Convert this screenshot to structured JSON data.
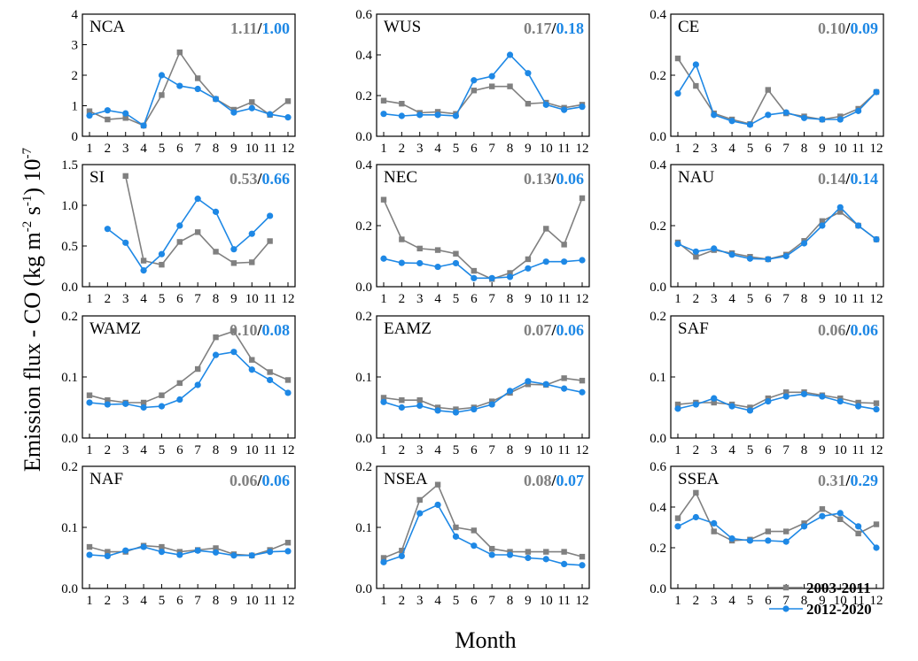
{
  "y_label": "Emission flux - CO (kg m",
  "y_label_sup1": "-2",
  "y_label_mid": " s",
  "y_label_sup2": "-1",
  "y_label_end": ") 10",
  "y_label_sup3": "-7",
  "x_label": "Month",
  "colors": {
    "series_2003": "#808080",
    "series_2012": "#1e88e5"
  },
  "legend": [
    "2003-2011",
    "2012-2020"
  ],
  "chart_data": [
    {
      "type": "line",
      "title": "NCA",
      "stat_2003": "1.11",
      "sep": "/",
      "stat_2012": "1.00",
      "ylim": [
        0,
        4
      ],
      "yticks": [
        "0",
        "1",
        "2",
        "3",
        "4"
      ],
      "ytick_values": [
        0,
        1,
        2,
        3,
        4
      ],
      "x": [
        "1",
        "2",
        "3",
        "4",
        "5",
        "6",
        "7",
        "8",
        "9",
        "10",
        "11",
        "12"
      ],
      "series": [
        {
          "name": "2003-2011",
          "values": [
            0.82,
            0.55,
            0.6,
            0.35,
            1.35,
            2.75,
            1.9,
            1.22,
            0.87,
            1.12,
            0.7,
            1.15
          ]
        },
        {
          "name": "2012-2020",
          "values": [
            0.68,
            0.85,
            0.75,
            0.35,
            2.0,
            1.65,
            1.55,
            1.22,
            0.78,
            0.92,
            0.72,
            0.62
          ]
        }
      ]
    },
    {
      "type": "line",
      "title": "WUS",
      "stat_2003": "0.17",
      "sep": "/",
      "stat_2012": "0.18",
      "ylim": [
        0,
        0.6
      ],
      "yticks": [
        "0.0",
        "0.2",
        "0.4",
        "0.6"
      ],
      "ytick_values": [
        0,
        0.2,
        0.4,
        0.6
      ],
      "x": [
        "1",
        "2",
        "3",
        "4",
        "5",
        "6",
        "7",
        "8",
        "9",
        "10",
        "11",
        "12"
      ],
      "series": [
        {
          "name": "2003-2011",
          "values": [
            0.175,
            0.16,
            0.115,
            0.12,
            0.11,
            0.225,
            0.245,
            0.245,
            0.16,
            0.165,
            0.14,
            0.155
          ]
        },
        {
          "name": "2012-2020",
          "values": [
            0.11,
            0.1,
            0.105,
            0.105,
            0.1,
            0.275,
            0.295,
            0.4,
            0.31,
            0.155,
            0.13,
            0.145
          ]
        }
      ]
    },
    {
      "type": "line",
      "title": "CE",
      "stat_2003": "0.10",
      "sep": "/",
      "stat_2012": "0.09",
      "ylim": [
        0,
        0.4
      ],
      "yticks": [
        "0.0",
        "0.2",
        "0.4"
      ],
      "ytick_values": [
        0,
        0.2,
        0.4
      ],
      "x": [
        "1",
        "2",
        "3",
        "4",
        "5",
        "6",
        "7",
        "8",
        "9",
        "10",
        "11",
        "12"
      ],
      "series": [
        {
          "name": "2003-2011",
          "values": [
            0.255,
            0.165,
            0.075,
            0.055,
            0.04,
            0.152,
            0.075,
            0.065,
            0.055,
            0.065,
            0.09,
            0.145
          ]
        },
        {
          "name": "2012-2020",
          "values": [
            0.14,
            0.235,
            0.07,
            0.05,
            0.038,
            0.07,
            0.078,
            0.06,
            0.055,
            0.055,
            0.083,
            0.145
          ]
        }
      ]
    },
    {
      "type": "line",
      "title": "SI",
      "stat_2003": "0.53",
      "sep": "/",
      "stat_2012": "0.66",
      "ylim": [
        0,
        1.5
      ],
      "yticks": [
        "0.0",
        "0.5",
        "1.0",
        "1.5"
      ],
      "ytick_values": [
        0,
        0.5,
        1.0,
        1.5
      ],
      "x": [
        "1",
        "2",
        "3",
        "4",
        "5",
        "6",
        "7",
        "8",
        "9",
        "10",
        "11",
        "12"
      ],
      "series": [
        {
          "name": "2003-2011",
          "values": [
            null,
            null,
            1.36,
            0.32,
            0.27,
            0.55,
            0.67,
            0.43,
            0.29,
            0.3,
            0.56,
            null
          ]
        },
        {
          "name": "2012-2020",
          "values": [
            null,
            0.71,
            0.54,
            0.2,
            0.4,
            0.75,
            1.08,
            0.92,
            0.46,
            0.65,
            0.87,
            null
          ]
        }
      ]
    },
    {
      "type": "line",
      "title": "NEC",
      "stat_2003": "0.13",
      "sep": "/",
      "stat_2012": "0.06",
      "ylim": [
        0,
        0.4
      ],
      "yticks": [
        "0.0",
        "0.2",
        "0.4"
      ],
      "ytick_values": [
        0,
        0.2,
        0.4
      ],
      "x": [
        "1",
        "2",
        "3",
        "4",
        "5",
        "6",
        "7",
        "8",
        "9",
        "10",
        "11",
        "12"
      ],
      "series": [
        {
          "name": "2003-2011",
          "values": [
            0.285,
            0.155,
            0.125,
            0.12,
            0.108,
            0.052,
            0.025,
            0.045,
            0.09,
            0.19,
            0.138,
            0.29
          ]
        },
        {
          "name": "2012-2020",
          "values": [
            0.092,
            0.078,
            0.077,
            0.065,
            0.077,
            0.028,
            0.028,
            0.032,
            0.06,
            0.082,
            0.082,
            0.087
          ]
        }
      ]
    },
    {
      "type": "line",
      "title": "NAU",
      "stat_2003": "0.14",
      "sep": "/",
      "stat_2012": "0.14",
      "ylim": [
        0,
        0.4
      ],
      "yticks": [
        "0.0",
        "0.2",
        "0.4"
      ],
      "ytick_values": [
        0,
        0.2,
        0.4
      ],
      "x": [
        "1",
        "2",
        "3",
        "4",
        "5",
        "6",
        "7",
        "8",
        "9",
        "10",
        "11",
        "12"
      ],
      "series": [
        {
          "name": "2003-2011",
          "values": [
            0.145,
            0.098,
            0.12,
            0.11,
            0.098,
            0.09,
            0.105,
            0.15,
            0.215,
            0.245,
            0.2,
            0.155
          ]
        },
        {
          "name": "2012-2020",
          "values": [
            0.14,
            0.115,
            0.125,
            0.105,
            0.092,
            0.09,
            0.1,
            0.142,
            0.2,
            0.26,
            0.2,
            0.155
          ]
        }
      ]
    },
    {
      "type": "line",
      "title": "WAMZ",
      "stat_2003": "0.10",
      "sep": "/",
      "stat_2012": "0.08",
      "ylim": [
        0,
        0.2
      ],
      "yticks": [
        "0.0",
        "0.1",
        "0.2"
      ],
      "ytick_values": [
        0,
        0.1,
        0.2
      ],
      "x": [
        "1",
        "2",
        "3",
        "4",
        "5",
        "6",
        "7",
        "8",
        "9",
        "10",
        "11",
        "12"
      ],
      "series": [
        {
          "name": "2003-2011",
          "values": [
            0.07,
            0.062,
            0.058,
            0.058,
            0.07,
            0.09,
            0.113,
            0.165,
            0.175,
            0.128,
            0.108,
            0.095
          ]
        },
        {
          "name": "2012-2020",
          "values": [
            0.058,
            0.055,
            0.056,
            0.05,
            0.052,
            0.063,
            0.087,
            0.136,
            0.141,
            0.112,
            0.095,
            0.074
          ]
        }
      ]
    },
    {
      "type": "line",
      "title": "EAMZ",
      "stat_2003": "0.07",
      "sep": "/",
      "stat_2012": "0.06",
      "ylim": [
        0,
        0.2
      ],
      "yticks": [
        "0.0",
        "0.1",
        "0.2"
      ],
      "ytick_values": [
        0,
        0.1,
        0.2
      ],
      "x": [
        "1",
        "2",
        "3",
        "4",
        "5",
        "6",
        "7",
        "8",
        "9",
        "10",
        "11",
        "12"
      ],
      "series": [
        {
          "name": "2003-2011",
          "values": [
            0.066,
            0.062,
            0.062,
            0.05,
            0.047,
            0.05,
            0.06,
            0.074,
            0.088,
            0.087,
            0.098,
            0.094
          ]
        },
        {
          "name": "2012-2020",
          "values": [
            0.059,
            0.05,
            0.053,
            0.045,
            0.042,
            0.047,
            0.055,
            0.077,
            0.093,
            0.088,
            0.081,
            0.075
          ]
        }
      ]
    },
    {
      "type": "line",
      "title": "SAF",
      "stat_2003": "0.06",
      "sep": "/",
      "stat_2012": "0.06",
      "ylim": [
        0,
        0.2
      ],
      "yticks": [
        "0.0",
        "0.1",
        "0.2"
      ],
      "ytick_values": [
        0,
        0.1,
        0.2
      ],
      "x": [
        "1",
        "2",
        "3",
        "4",
        "5",
        "6",
        "7",
        "8",
        "9",
        "10",
        "11",
        "12"
      ],
      "series": [
        {
          "name": "2003-2011",
          "values": [
            0.055,
            0.058,
            0.058,
            0.055,
            0.05,
            0.065,
            0.075,
            0.075,
            0.07,
            0.065,
            0.058,
            0.057
          ]
        },
        {
          "name": "2012-2020",
          "values": [
            0.048,
            0.055,
            0.065,
            0.052,
            0.045,
            0.06,
            0.068,
            0.072,
            0.068,
            0.06,
            0.052,
            0.047
          ]
        }
      ]
    },
    {
      "type": "line",
      "title": "NAF",
      "stat_2003": "0.06",
      "sep": "/",
      "stat_2012": "0.06",
      "ylim": [
        0,
        0.2
      ],
      "yticks": [
        "0.0",
        "0.1",
        "0.2"
      ],
      "ytick_values": [
        0,
        0.1,
        0.2
      ],
      "x": [
        "1",
        "2",
        "3",
        "4",
        "5",
        "6",
        "7",
        "8",
        "9",
        "10",
        "11",
        "12"
      ],
      "series": [
        {
          "name": "2003-2011",
          "values": [
            0.068,
            0.06,
            0.06,
            0.07,
            0.068,
            0.06,
            0.063,
            0.066,
            0.056,
            0.054,
            0.063,
            0.075
          ]
        },
        {
          "name": "2012-2020",
          "values": [
            0.055,
            0.053,
            0.062,
            0.068,
            0.06,
            0.055,
            0.062,
            0.059,
            0.054,
            0.054,
            0.06,
            0.061
          ]
        }
      ]
    },
    {
      "type": "line",
      "title": "NSEA",
      "stat_2003": "0.08",
      "sep": "/",
      "stat_2012": "0.07",
      "ylim": [
        0,
        0.2
      ],
      "yticks": [
        "0.0",
        "0.1",
        "0.2"
      ],
      "ytick_values": [
        0,
        0.1,
        0.2
      ],
      "x": [
        "1",
        "2",
        "3",
        "4",
        "5",
        "6",
        "7",
        "8",
        "9",
        "10",
        "11",
        "12"
      ],
      "series": [
        {
          "name": "2003-2011",
          "values": [
            0.05,
            0.062,
            0.145,
            0.17,
            0.1,
            0.095,
            0.065,
            0.06,
            0.06,
            0.06,
            0.06,
            0.052
          ]
        },
        {
          "name": "2012-2020",
          "values": [
            0.043,
            0.053,
            0.123,
            0.137,
            0.085,
            0.07,
            0.055,
            0.055,
            0.05,
            0.048,
            0.04,
            0.038
          ]
        }
      ]
    },
    {
      "type": "line",
      "title": "SSEA",
      "stat_2003": "0.31",
      "sep": "/",
      "stat_2012": "0.29",
      "ylim": [
        0,
        0.6
      ],
      "yticks": [
        "0.0",
        "0.2",
        "0.4",
        "0.6"
      ],
      "ytick_values": [
        0,
        0.2,
        0.4,
        0.6
      ],
      "x": [
        "1",
        "2",
        "3",
        "4",
        "5",
        "6",
        "7",
        "8",
        "9",
        "10",
        "11",
        "12"
      ],
      "series": [
        {
          "name": "2003-2011",
          "values": [
            0.345,
            0.47,
            0.28,
            0.235,
            0.24,
            0.28,
            0.28,
            0.32,
            0.39,
            0.34,
            0.27,
            0.315
          ]
        },
        {
          "name": "2012-2020",
          "values": [
            0.305,
            0.35,
            0.32,
            0.245,
            0.235,
            0.235,
            0.23,
            0.305,
            0.355,
            0.37,
            0.305,
            0.2
          ]
        }
      ]
    }
  ]
}
